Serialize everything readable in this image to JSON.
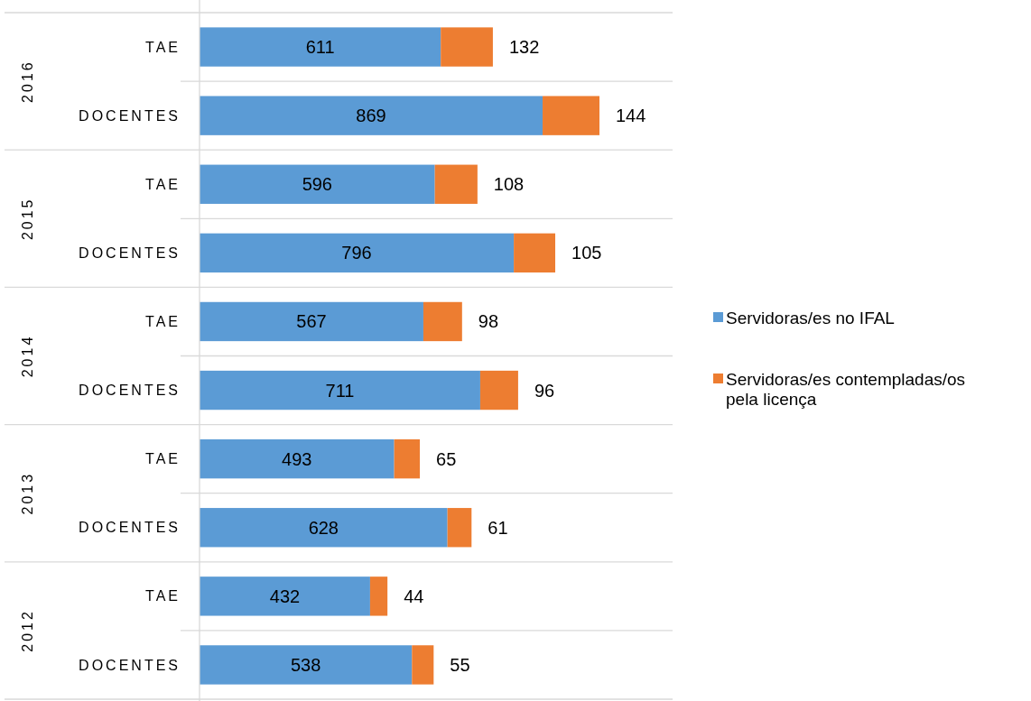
{
  "chart_data": {
    "type": "bar",
    "orientation": "horizontal",
    "stacked": true,
    "data_labels": true,
    "legend": "right",
    "grid": "y",
    "categories": [
      "TAE",
      "DOCENTES",
      "TAE",
      "DOCENTES",
      "TAE",
      "DOCENTES",
      "TAE",
      "DOCENTES",
      "TAE",
      "DOCENTES"
    ],
    "series": [
      {
        "name": "Servidoras/es no IFAL",
        "color": "#5b9bd5",
        "values": [
          611,
          869,
          596,
          796,
          567,
          711,
          493,
          628,
          432,
          538
        ]
      },
      {
        "name": "Servidoras/es contempladas/os pela licença",
        "color": "#ed7d31",
        "values": [
          132,
          144,
          108,
          105,
          98,
          96,
          65,
          61,
          44,
          55
        ]
      }
    ],
    "annotations": [
      "2016",
      "2015",
      "2014",
      "2013",
      "2012"
    ]
  }
}
